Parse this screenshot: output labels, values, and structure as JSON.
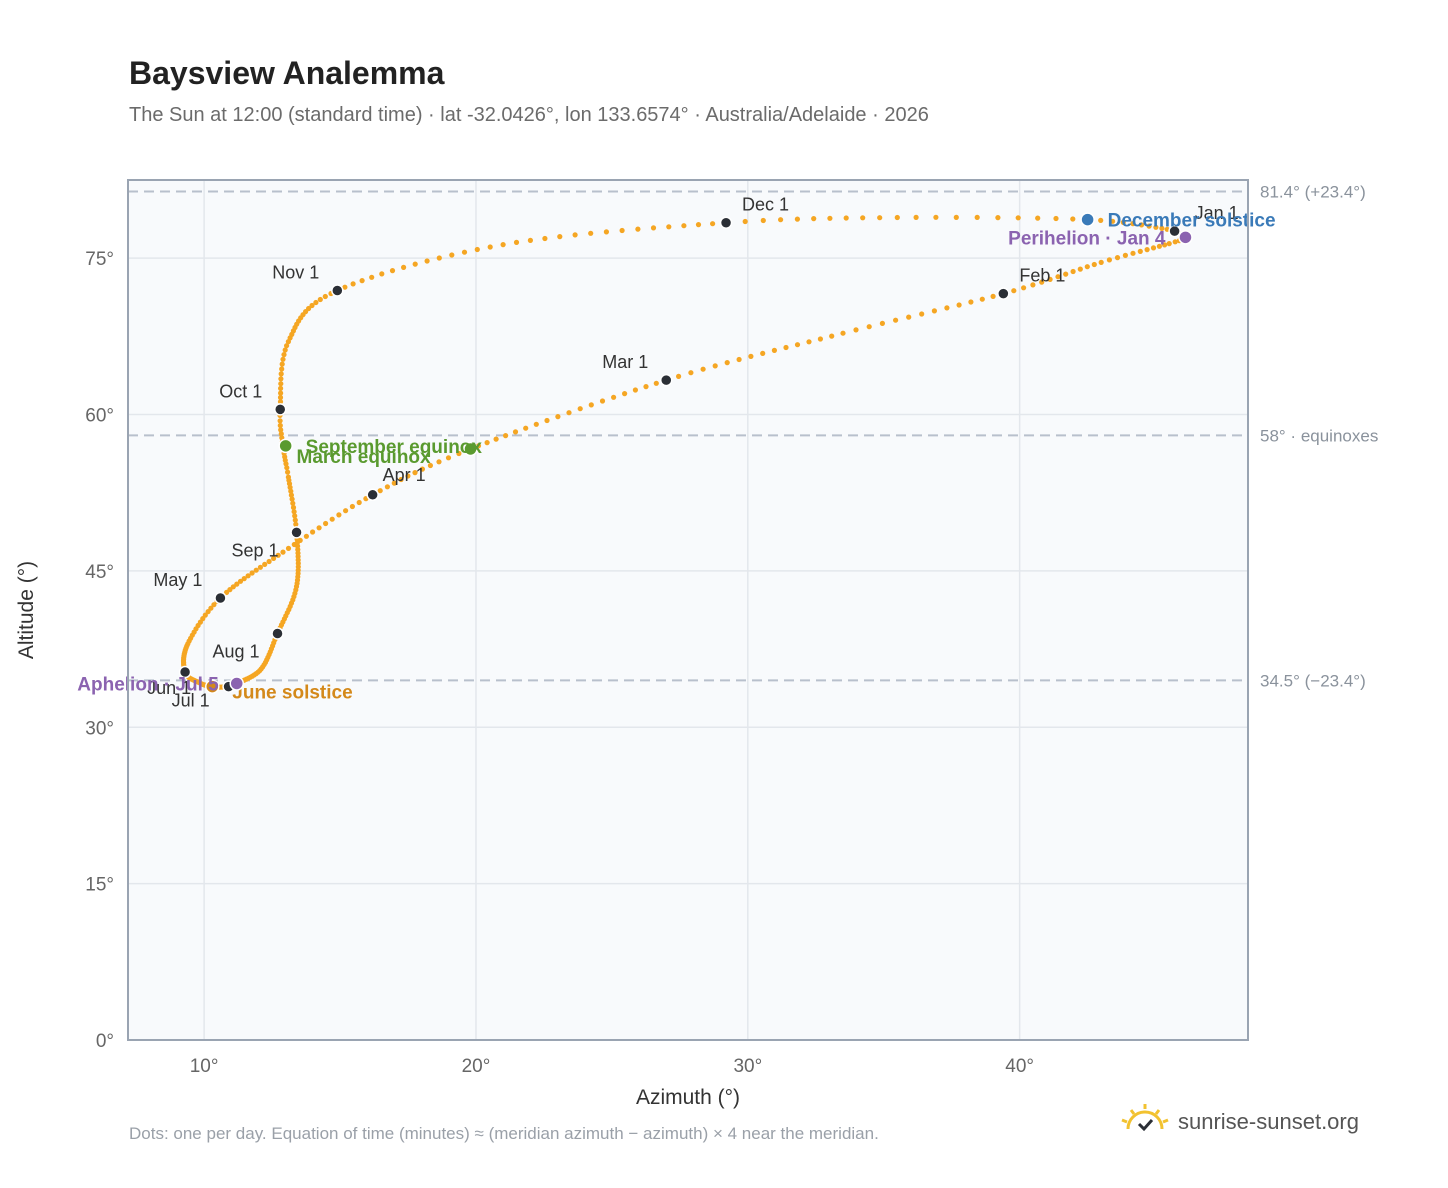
{
  "colors": {
    "path": "#f5a623",
    "marker": "#2b2f36",
    "equinox": "#5a9a2f",
    "december": "#3a7ab8",
    "june": "#d4891a",
    "perihelion": "#8b63b0",
    "ref_line": "#b8c0cc",
    "grid": "#e3e7ec",
    "plot_bg": "#f8fafc",
    "axis_text": "#666666",
    "ref_text": "#8a929c"
  },
  "header": {
    "title": "Baysview Analemma",
    "subtitle": "The Sun at 12:00 (standard time) · lat -32.0426°, lon 133.6574° · Australia/Adelaide · 2026"
  },
  "footer": {
    "note": "Dots: one per day. Equation of time (minutes) ≈ (meridian azimuth − azimuth) × 4 near the meridian.",
    "brand": "sunrise-sunset.org",
    "brand_icon": "sun-icon"
  },
  "chart_data": {
    "type": "scatter",
    "xlabel": "Azimuth (°)",
    "ylabel": "Altitude (°)",
    "xlim": [
      7.2,
      48.4
    ],
    "ylim": [
      0,
      82.5
    ],
    "xticks": [
      10,
      20,
      30,
      40
    ],
    "xtick_labels": [
      "10°",
      "20°",
      "30°",
      "40°"
    ],
    "yticks": [
      0,
      15,
      30,
      45,
      60,
      75
    ],
    "ytick_labels": [
      "0°",
      "15°",
      "30°",
      "45°",
      "60°",
      "75°"
    ],
    "grid": true,
    "reference_lines": [
      {
        "y": 81.4,
        "label": "81.4° (+23.4°)"
      },
      {
        "y": 58.0,
        "label": "58° · equinoxes"
      },
      {
        "y": 34.5,
        "label": "34.5° (−23.4°)"
      }
    ],
    "path_anchors": [
      {
        "doy": 1,
        "az": 45.7,
        "alt": 77.6
      },
      {
        "doy": 4,
        "az": 46.1,
        "alt": 77.0
      },
      {
        "doy": 10,
        "az": 45.5,
        "alt": 76.4
      },
      {
        "doy": 20,
        "az": 43.0,
        "alt": 74.6
      },
      {
        "doy": 32,
        "az": 39.4,
        "alt": 71.6
      },
      {
        "doy": 45,
        "az": 33.5,
        "alt": 67.8
      },
      {
        "doy": 60,
        "az": 27.0,
        "alt": 63.3
      },
      {
        "doy": 79,
        "az": 19.8,
        "alt": 56.7
      },
      {
        "doy": 91,
        "az": 16.2,
        "alt": 52.3
      },
      {
        "doy": 105,
        "az": 12.9,
        "alt": 46.8
      },
      {
        "doy": 121,
        "az": 10.6,
        "alt": 42.4
      },
      {
        "doy": 135,
        "az": 9.4,
        "alt": 38.0
      },
      {
        "doy": 152,
        "az": 9.3,
        "alt": 35.3
      },
      {
        "doy": 163,
        "az": 9.8,
        "alt": 34.3
      },
      {
        "doy": 172,
        "az": 10.3,
        "alt": 33.9
      },
      {
        "doy": 182,
        "az": 10.9,
        "alt": 33.9
      },
      {
        "doy": 186,
        "az": 11.2,
        "alt": 34.2
      },
      {
        "doy": 200,
        "az": 12.1,
        "alt": 35.6
      },
      {
        "doy": 213,
        "az": 12.7,
        "alt": 39.0
      },
      {
        "doy": 228,
        "az": 13.4,
        "alt": 43.5
      },
      {
        "doy": 244,
        "az": 13.4,
        "alt": 48.7
      },
      {
        "doy": 258,
        "az": 13.1,
        "alt": 54.0
      },
      {
        "doy": 266,
        "az": 12.9,
        "alt": 57.0
      },
      {
        "doy": 274,
        "az": 12.8,
        "alt": 60.5
      },
      {
        "doy": 289,
        "az": 13.1,
        "alt": 67.0
      },
      {
        "doy": 305,
        "az": 14.9,
        "alt": 71.9
      },
      {
        "doy": 320,
        "az": 21.0,
        "alt": 76.3
      },
      {
        "doy": 335,
        "az": 29.2,
        "alt": 78.4
      },
      {
        "doy": 345,
        "az": 35.5,
        "alt": 78.9
      },
      {
        "doy": 355,
        "az": 42.5,
        "alt": 78.7
      },
      {
        "doy": 365,
        "az": 45.6,
        "alt": 77.7
      }
    ],
    "month_markers": [
      {
        "label": "Jan 1",
        "az": 45.7,
        "alt": 77.6
      },
      {
        "label": "Feb 1",
        "az": 39.4,
        "alt": 71.6
      },
      {
        "label": "Mar 1",
        "az": 27.0,
        "alt": 63.3
      },
      {
        "label": "Apr 1",
        "az": 16.2,
        "alt": 52.3
      },
      {
        "label": "May 1",
        "az": 10.6,
        "alt": 42.4
      },
      {
        "label": "Jun 1",
        "az": 9.3,
        "alt": 35.3
      },
      {
        "label": "Jul 1",
        "az": 10.9,
        "alt": 33.9
      },
      {
        "label": "Aug 1",
        "az": 12.7,
        "alt": 39.0
      },
      {
        "label": "Sep 1",
        "az": 13.4,
        "alt": 48.7
      },
      {
        "label": "Oct 1",
        "az": 12.8,
        "alt": 60.5
      },
      {
        "label": "Nov 1",
        "az": 14.9,
        "alt": 71.9
      },
      {
        "label": "Dec 1",
        "az": 29.2,
        "alt": 78.4
      }
    ],
    "events": [
      {
        "label": "March equinox",
        "az": 19.8,
        "alt": 56.7,
        "kind": "equinox"
      },
      {
        "label": "September equinox",
        "az": 13.0,
        "alt": 57.0,
        "kind": "equinox"
      },
      {
        "label": "June solstice",
        "az": 10.3,
        "alt": 33.9,
        "kind": "june"
      },
      {
        "label": "December solstice",
        "az": 42.5,
        "alt": 78.7,
        "kind": "december"
      },
      {
        "label": "Perihelion · Jan 4",
        "az": 46.1,
        "alt": 77.0,
        "kind": "perihelion"
      },
      {
        "label": "Aphelion · Jul 5",
        "az": 11.2,
        "alt": 34.2,
        "kind": "perihelion"
      }
    ]
  }
}
